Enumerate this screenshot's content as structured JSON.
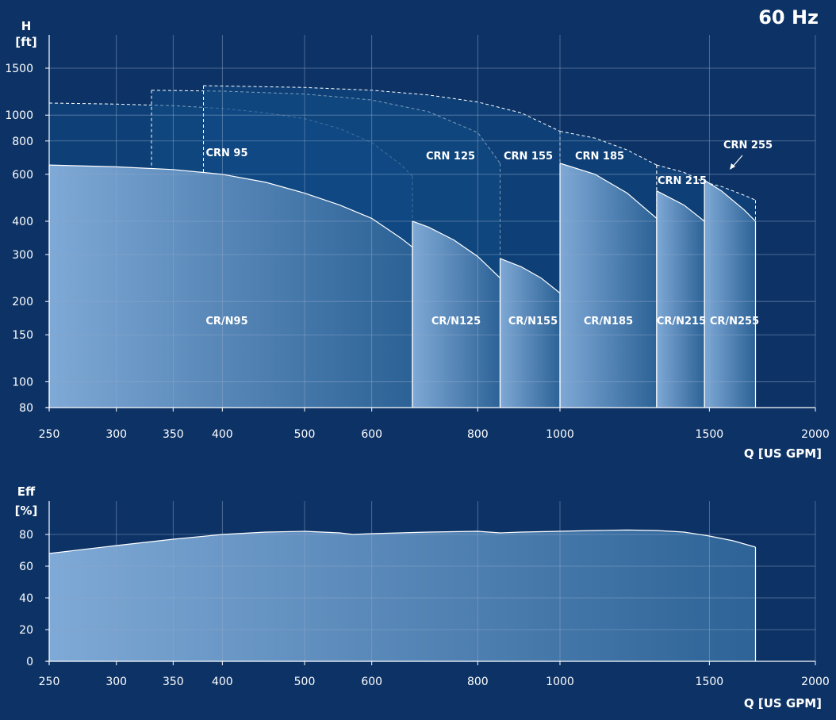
{
  "colors": {
    "background": "#0d3366",
    "envelope_fill": "#104a85",
    "grid": "#8fa9cc",
    "curve_line": "#ffffff",
    "fill_light": "#7fa9d6",
    "fill_dark": "#2c6296"
  },
  "header": {
    "frequency": "60 Hz"
  },
  "chart_data": [
    {
      "type": "area",
      "title": "",
      "ylabel": "H",
      "yunit": "[ft]",
      "xlabel": "Q [US GPM]",
      "xscale": "log",
      "yscale": "log",
      "xlim": [
        250,
        2000
      ],
      "ylim": [
        80,
        1500
      ],
      "grid": true,
      "x_ticks": [
        250,
        300,
        350,
        400,
        500,
        600,
        800,
        1000,
        1500,
        2000
      ],
      "x_tick_labels": [
        "250",
        "300",
        "350",
        "400",
        "500",
        "600",
        "800",
        "1000",
        "1500",
        "2000"
      ],
      "y_ticks": [
        80,
        100,
        150,
        200,
        300,
        400,
        600,
        800,
        1000,
        1500
      ],
      "y_tick_labels": [
        "80",
        "100",
        "150",
        "200",
        "300",
        "400",
        "600",
        "800",
        "1000",
        "1500"
      ],
      "series": [
        {
          "name": "CR/N95",
          "envelope_name": "CRN 95",
          "x": [
            250,
            300,
            350,
            400,
            450,
            500,
            550,
            600,
            650,
            670
          ],
          "y_top": [
            650,
            640,
            625,
            600,
            560,
            510,
            460,
            410,
            345,
            320
          ],
          "y_envelope": [
            1110,
            1100,
            1085,
            1060,
            1020,
            970,
            890,
            790,
            650,
            590
          ]
        },
        {
          "name": "CR/N125",
          "envelope_name": "CRN 125",
          "x": [
            670,
            700,
            750,
            800,
            850
          ],
          "y_top": [
            400,
            380,
            340,
            295,
            245
          ],
          "x_envelope": [
            330,
            400,
            500,
            600,
            700,
            800,
            850
          ],
          "y_envelope": [
            1240,
            1230,
            1200,
            1140,
            1030,
            860,
            660
          ]
        },
        {
          "name": "CR/N155",
          "envelope_name": "CRN 155",
          "x": [
            850,
            900,
            950,
            1000
          ],
          "y_top": [
            290,
            270,
            245,
            215
          ],
          "x_envelope": [
            380,
            500,
            600,
            700,
            800,
            900,
            1000
          ],
          "y_envelope": [
            1290,
            1270,
            1240,
            1190,
            1120,
            1020,
            870
          ]
        },
        {
          "name": "CR/N185",
          "envelope_name": "CRN 185",
          "x": [
            1000,
            1100,
            1200,
            1300
          ],
          "y_top": [
            660,
            600,
            510,
            410
          ],
          "x_envelope": [
            1000,
            1100,
            1200,
            1300
          ],
          "y_envelope": [
            870,
            820,
            740,
            650
          ]
        },
        {
          "name": "CR/N215",
          "envelope_name": "CRN 215",
          "x": [
            1300,
            1400,
            1480
          ],
          "y_top": [
            520,
            460,
            400
          ],
          "x_envelope": [
            1300,
            1400,
            1480
          ],
          "y_envelope": [
            650,
            610,
            560
          ]
        },
        {
          "name": "CR/N255",
          "envelope_name": "CRN 255",
          "x": [
            1480,
            1550,
            1650,
            1700
          ],
          "y_top": [
            570,
            520,
            440,
            400
          ],
          "x_envelope": [
            1480,
            1550,
            1650,
            1700
          ],
          "y_envelope": [
            560,
            540,
            500,
            480
          ]
        }
      ]
    },
    {
      "type": "area",
      "title": "",
      "ylabel": "Eff",
      "yunit": "[%]",
      "xlabel": "Q [US GPM]",
      "xscale": "log",
      "xlim": [
        250,
        2000
      ],
      "ylim": [
        0,
        80
      ],
      "grid": true,
      "x_ticks": [
        250,
        300,
        350,
        400,
        500,
        600,
        800,
        1000,
        1500,
        2000
      ],
      "x_tick_labels": [
        "250",
        "300",
        "350",
        "400",
        "500",
        "600",
        "800",
        "1000",
        "1500",
        "2000"
      ],
      "y_ticks": [
        0,
        20,
        40,
        60,
        80
      ],
      "y_tick_labels": [
        "0",
        "20",
        "40",
        "60",
        "80"
      ],
      "series": [
        {
          "name": "Efficiency",
          "x": [
            250,
            300,
            350,
            400,
            450,
            500,
            550,
            570,
            600,
            700,
            800,
            850,
            900,
            1000,
            1100,
            1200,
            1300,
            1400,
            1500,
            1600,
            1700
          ],
          "y": [
            68,
            73,
            77,
            80,
            81.5,
            82,
            81,
            80,
            80.5,
            81.5,
            82,
            81,
            81.5,
            82,
            82.5,
            82.8,
            82.5,
            81.5,
            79,
            76,
            72
          ]
        }
      ]
    }
  ]
}
